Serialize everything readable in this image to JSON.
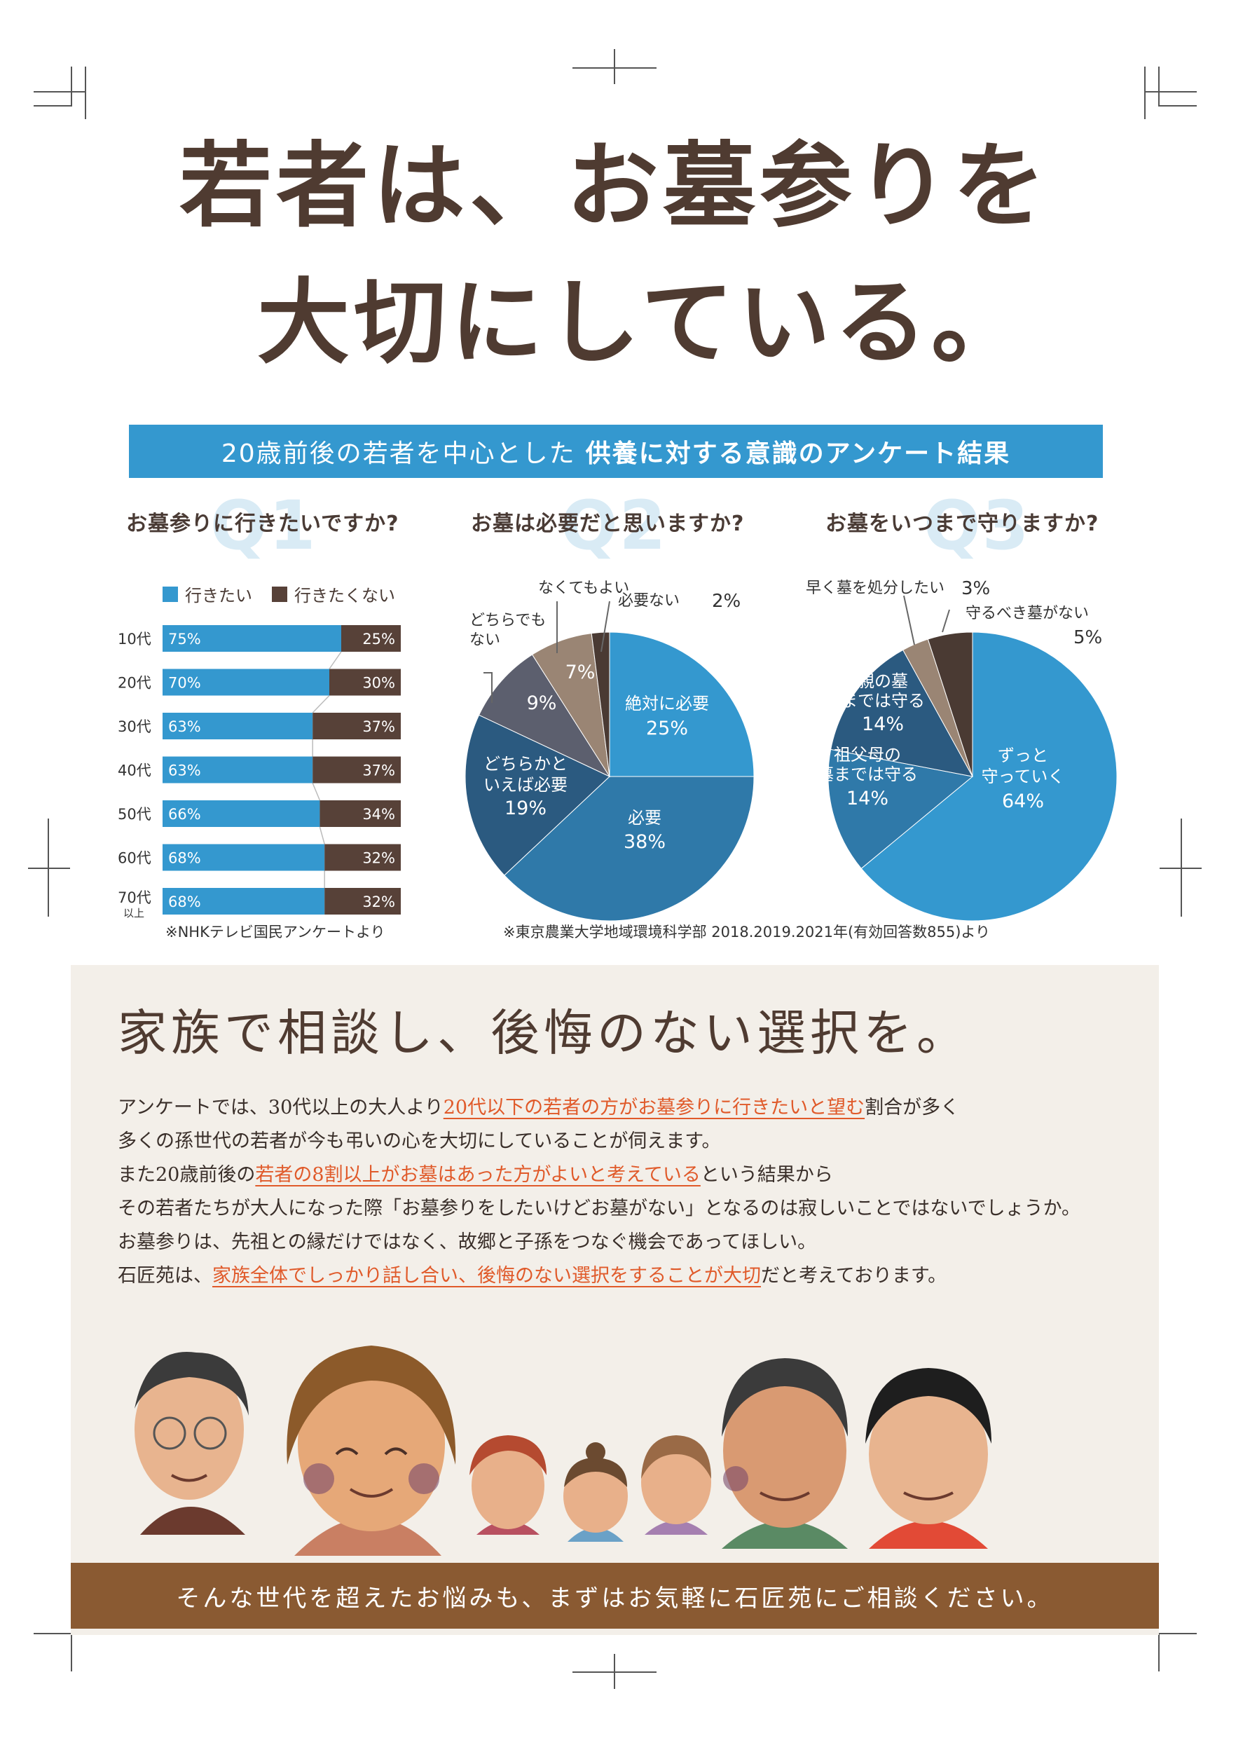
{
  "headline": {
    "line1": "若者は、お墓参りを",
    "line2": "大切にしている。"
  },
  "banner": {
    "prefix": "20歳前後の若者を中心とした",
    "emphasis": "供養に対する意識のアンケート結果"
  },
  "q1": {
    "watermark": "Q1",
    "title": "お墓参りに行きたいですか?",
    "note": "※NHKテレビ国民アンケートより",
    "chart_data": {
      "type": "bar",
      "orientation": "horizontal-stacked",
      "categories": [
        "10代",
        "20代",
        "30代",
        "40代",
        "50代",
        "60代",
        "70代以上"
      ],
      "category_main": [
        "10代",
        "20代",
        "30代",
        "40代",
        "50代",
        "60代",
        "70代"
      ],
      "category_sub": [
        "",
        "",
        "",
        "",
        "",
        "",
        "以上"
      ],
      "series": [
        {
          "name": "行きたい",
          "values": [
            75,
            70,
            63,
            63,
            66,
            68,
            68
          ],
          "color": "#3498cf"
        },
        {
          "name": "行きたくない",
          "values": [
            25,
            30,
            37,
            37,
            34,
            32,
            32
          ],
          "color": "#574138"
        }
      ],
      "unit": "%"
    }
  },
  "q2": {
    "watermark": "Q2",
    "title": "お墓は必要だと思いますか?",
    "chart_data": {
      "type": "pie",
      "slices": [
        {
          "label": "絶対に必要",
          "value": 25,
          "color": "#3498cf"
        },
        {
          "label": "必要",
          "value": 38,
          "color": "#2f79a9"
        },
        {
          "label": "どちらかといえば必要",
          "value": 19,
          "color": "#2b5a80"
        },
        {
          "label": "どちらでもない",
          "value": 9,
          "color": "#5c5f6e"
        },
        {
          "label": "なくてもよい",
          "value": 7,
          "color": "#9a8574"
        },
        {
          "label": "必要ない",
          "value": 2,
          "color": "#4a3a33"
        }
      ],
      "unit": "%"
    },
    "labels": {
      "s1a": "絶対に必要",
      "s1b": "25%",
      "s2a": "必要",
      "s2b": "38%",
      "s3a": "どちらかと",
      "s3b": "いえば必要",
      "s3c": "19%",
      "s4": "9%",
      "s5": "7%",
      "out1a": "どちらでも",
      "out1b": "ない",
      "out2": "なくてもよい",
      "out3a": "必要ない",
      "out3b": "2%"
    }
  },
  "q3": {
    "watermark": "Q3",
    "title": "お墓をいつまで守りますか?",
    "chart_data": {
      "type": "pie",
      "slices": [
        {
          "label": "ずっと守っていく",
          "value": 64,
          "color": "#3498cf"
        },
        {
          "label": "祖父母の墓までは守る",
          "value": 14,
          "color": "#2f79a9"
        },
        {
          "label": "親の墓までは守る",
          "value": 14,
          "color": "#2b5a80"
        },
        {
          "label": "早く墓を処分したい",
          "value": 3,
          "color": "#9a8574"
        },
        {
          "label": "守るべき墓がない",
          "value": 5,
          "color": "#4a3a33"
        }
      ],
      "unit": "%"
    },
    "labels": {
      "s1a": "ずっと",
      "s1b": "守っていく",
      "s1c": "64%",
      "s2a": "祖父母の",
      "s2b": "墓までは守る",
      "s2c": "14%",
      "s3a": "親の墓",
      "s3b": "までは守る",
      "s3c": "14%",
      "out1a": "早く墓を処分したい",
      "out1b": "3%",
      "out2a": "守るべき墓がない",
      "out2b": "5%"
    }
  },
  "source_note": "※東京農業大学地域環境科学部 2018.2019.2021年(有効回答数855)より",
  "lower": {
    "subhead": "家族で相談し、後悔のない選択を。",
    "p1a": "アンケートでは、30代以上の大人より",
    "p1b": "20代以下の若者の方がお墓参りに行きたいと望む",
    "p1c": "割合が多く",
    "p2": "多くの孫世代の若者が今も弔いの心を大切にしていることが伺えます。",
    "p3a": "また20歳前後の",
    "p3b": "若者の8割以上がお墓はあった方がよいと考えている",
    "p3c": "という結果から",
    "p4": "その若者たちが大人になった際「お墓参りをしたいけどお墓がない」となるのは寂しいことではないでしょうか。",
    "p5": "お墓参りは、先祖との縁だけではなく、故郷と子孫をつなぐ機会であってほしい。",
    "p6a": "石匠苑は、",
    "p6b": "家族全体でしっかり話し合い、後悔のない選択をすることが大切",
    "p6c": "だと考えております。"
  },
  "footer": "そんな世代を超えたお悩みも、まずはお気軽に石匠苑にご相談ください。"
}
